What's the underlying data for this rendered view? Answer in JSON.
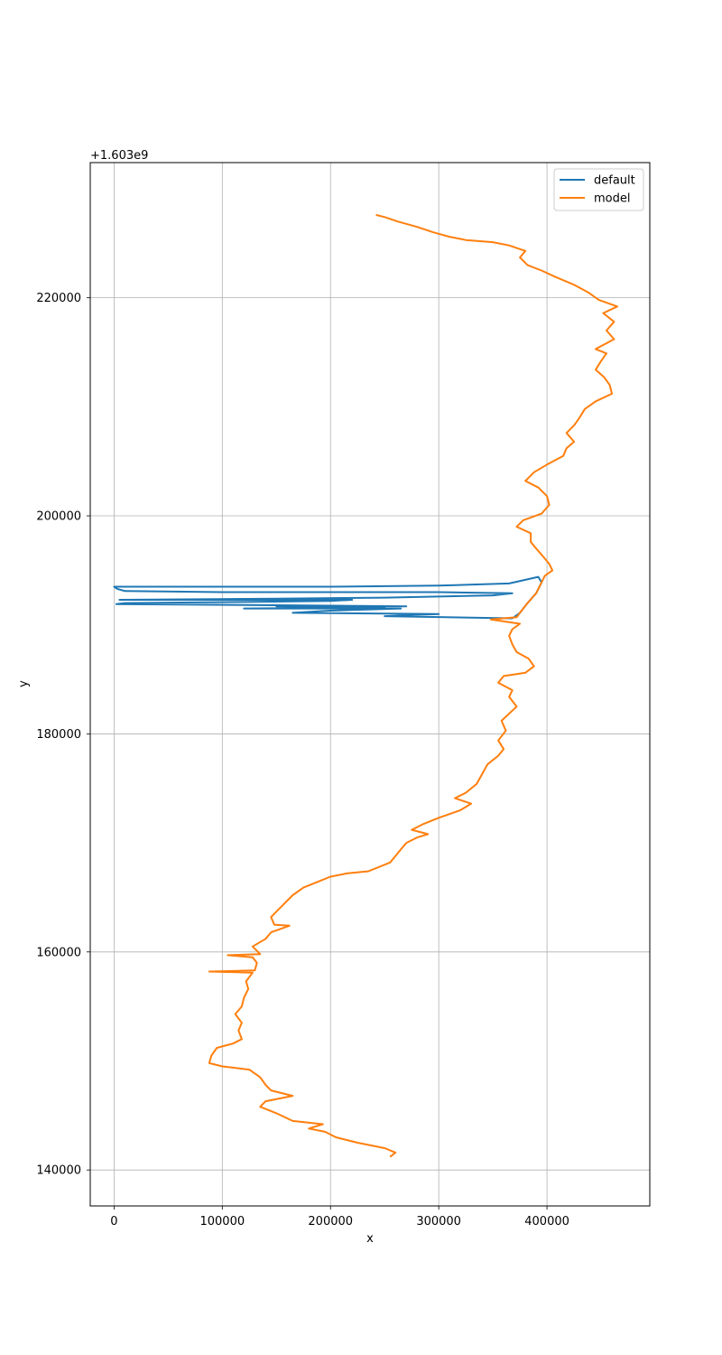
{
  "chart_data": {
    "type": "line",
    "title": "",
    "xlabel": "x",
    "ylabel": "y",
    "y_offset_label": "+1.603e9",
    "xlim": [
      -22000,
      495000
    ],
    "ylim": [
      136700,
      232400
    ],
    "xticks": [
      0,
      100000,
      200000,
      300000,
      400000
    ],
    "xtick_labels": [
      "0",
      "100000",
      "200000",
      "300000",
      "400000"
    ],
    "yticks": [
      140000,
      160000,
      180000,
      200000,
      220000
    ],
    "ytick_labels": [
      "140000",
      "160000",
      "180000",
      "200000",
      "220000"
    ],
    "grid": true,
    "legend_position": "top-right",
    "series": [
      {
        "name": "model",
        "color": "#ff7f0e",
        "points": [
          [
            255000,
            141200
          ],
          [
            260000,
            141600
          ],
          [
            250000,
            142000
          ],
          [
            225000,
            142500
          ],
          [
            205000,
            143000
          ],
          [
            195000,
            143500
          ],
          [
            180000,
            143800
          ],
          [
            193000,
            144200
          ],
          [
            165000,
            144500
          ],
          [
            150000,
            145200
          ],
          [
            135000,
            145800
          ],
          [
            140000,
            146300
          ],
          [
            165000,
            146800
          ],
          [
            145000,
            147300
          ],
          [
            140000,
            147800
          ],
          [
            135000,
            148500
          ],
          [
            125000,
            149200
          ],
          [
            100000,
            149500
          ],
          [
            88000,
            149800
          ],
          [
            90000,
            150500
          ],
          [
            95000,
            151200
          ],
          [
            110000,
            151600
          ],
          [
            118000,
            152000
          ],
          [
            115000,
            152800
          ],
          [
            118000,
            153500
          ],
          [
            112000,
            154300
          ],
          [
            118000,
            155000
          ],
          [
            120000,
            155800
          ],
          [
            124000,
            156600
          ],
          [
            122000,
            157300
          ],
          [
            128000,
            158100
          ],
          [
            88000,
            158200
          ],
          [
            130000,
            158300
          ],
          [
            132000,
            159000
          ],
          [
            128000,
            159500
          ],
          [
            105000,
            159700
          ],
          [
            135000,
            159800
          ],
          [
            128000,
            160500
          ],
          [
            140000,
            161200
          ],
          [
            145000,
            161800
          ],
          [
            162000,
            162400
          ],
          [
            148000,
            162500
          ],
          [
            145000,
            163200
          ],
          [
            155000,
            164200
          ],
          [
            165000,
            165200
          ],
          [
            175000,
            165900
          ],
          [
            190000,
            166500
          ],
          [
            200000,
            166900
          ],
          [
            215000,
            167200
          ],
          [
            235000,
            167400
          ],
          [
            255000,
            168200
          ],
          [
            260000,
            168800
          ],
          [
            265000,
            169400
          ],
          [
            270000,
            170000
          ],
          [
            280000,
            170500
          ],
          [
            290000,
            170800
          ],
          [
            275000,
            171200
          ],
          [
            285000,
            171700
          ],
          [
            300000,
            172300
          ],
          [
            320000,
            173000
          ],
          [
            330000,
            173600
          ],
          [
            315000,
            174100
          ],
          [
            325000,
            174600
          ],
          [
            335000,
            175400
          ],
          [
            340000,
            176300
          ],
          [
            345000,
            177200
          ],
          [
            355000,
            178000
          ],
          [
            360000,
            178600
          ],
          [
            355000,
            179400
          ],
          [
            362000,
            180300
          ],
          [
            358000,
            181200
          ],
          [
            372000,
            182500
          ],
          [
            365000,
            183400
          ],
          [
            368000,
            184000
          ],
          [
            355000,
            184700
          ],
          [
            360000,
            185300
          ],
          [
            380000,
            185600
          ],
          [
            388000,
            186200
          ],
          [
            383000,
            186900
          ],
          [
            372000,
            187500
          ],
          [
            368000,
            188200
          ],
          [
            365000,
            189000
          ],
          [
            368000,
            189600
          ],
          [
            375000,
            190100
          ],
          [
            348000,
            190500
          ],
          [
            372000,
            190700
          ],
          [
            375000,
            191100
          ],
          [
            382000,
            192000
          ],
          [
            390000,
            192900
          ],
          [
            395000,
            193900
          ],
          [
            398000,
            194500
          ],
          [
            405000,
            195000
          ],
          [
            402000,
            195600
          ],
          [
            397000,
            196200
          ],
          [
            390000,
            197000
          ],
          [
            385000,
            197600
          ],
          [
            385000,
            198400
          ],
          [
            372000,
            199000
          ],
          [
            378000,
            199600
          ],
          [
            395000,
            200200
          ],
          [
            402000,
            201000
          ],
          [
            400000,
            201800
          ],
          [
            392000,
            202600
          ],
          [
            380000,
            203200
          ],
          [
            388000,
            204000
          ],
          [
            400000,
            204700
          ],
          [
            415000,
            205500
          ],
          [
            418000,
            206200
          ],
          [
            425000,
            206800
          ],
          [
            418000,
            207600
          ],
          [
            425000,
            208300
          ],
          [
            430000,
            209000
          ],
          [
            435000,
            209800
          ],
          [
            445000,
            210500
          ],
          [
            460000,
            211200
          ],
          [
            458000,
            212000
          ],
          [
            453000,
            212700
          ],
          [
            445000,
            213400
          ],
          [
            450000,
            214200
          ],
          [
            455000,
            214900
          ],
          [
            445000,
            215300
          ],
          [
            462000,
            216200
          ],
          [
            455000,
            217000
          ],
          [
            462000,
            217800
          ],
          [
            452000,
            218600
          ],
          [
            465000,
            219200
          ],
          [
            448000,
            219800
          ],
          [
            438000,
            220500
          ],
          [
            425000,
            221200
          ],
          [
            408000,
            221900
          ],
          [
            395000,
            222500
          ],
          [
            382000,
            223000
          ],
          [
            375000,
            223700
          ],
          [
            380000,
            224300
          ],
          [
            365000,
            224800
          ],
          [
            350000,
            225100
          ],
          [
            325000,
            225300
          ],
          [
            310000,
            225600
          ],
          [
            295000,
            226000
          ],
          [
            280000,
            226500
          ],
          [
            262000,
            227000
          ],
          [
            250000,
            227400
          ],
          [
            242000,
            227600
          ]
        ]
      },
      {
        "name": "default",
        "color": "#1f77b4",
        "points": [
          [
            368000,
            190600
          ],
          [
            375000,
            191100
          ],
          [
            382000,
            192000
          ],
          [
            390000,
            192900
          ],
          [
            395000,
            193900
          ],
          [
            392000,
            194400
          ],
          [
            365000,
            193800
          ],
          [
            300000,
            193600
          ],
          [
            200000,
            193500
          ],
          [
            100000,
            193500
          ],
          [
            0,
            193500
          ],
          [
            3000,
            193300
          ],
          [
            10000,
            193100
          ],
          [
            100000,
            193000
          ],
          [
            300000,
            193000
          ],
          [
            368000,
            192900
          ],
          [
            350000,
            192700
          ],
          [
            250000,
            192500
          ],
          [
            150000,
            192400
          ],
          [
            5000,
            192300
          ],
          [
            100000,
            192300
          ],
          [
            220000,
            192300
          ],
          [
            200000,
            192200
          ],
          [
            120000,
            192100
          ],
          [
            10000,
            192000
          ],
          [
            2000,
            191900
          ],
          [
            150000,
            191800
          ],
          [
            270000,
            191700
          ],
          [
            150000,
            191700
          ],
          [
            250000,
            191600
          ],
          [
            120000,
            191500
          ],
          [
            265000,
            191500
          ],
          [
            200000,
            191300
          ],
          [
            165000,
            191100
          ],
          [
            300000,
            191000
          ],
          [
            250000,
            190800
          ],
          [
            368000,
            190600
          ]
        ]
      }
    ]
  }
}
